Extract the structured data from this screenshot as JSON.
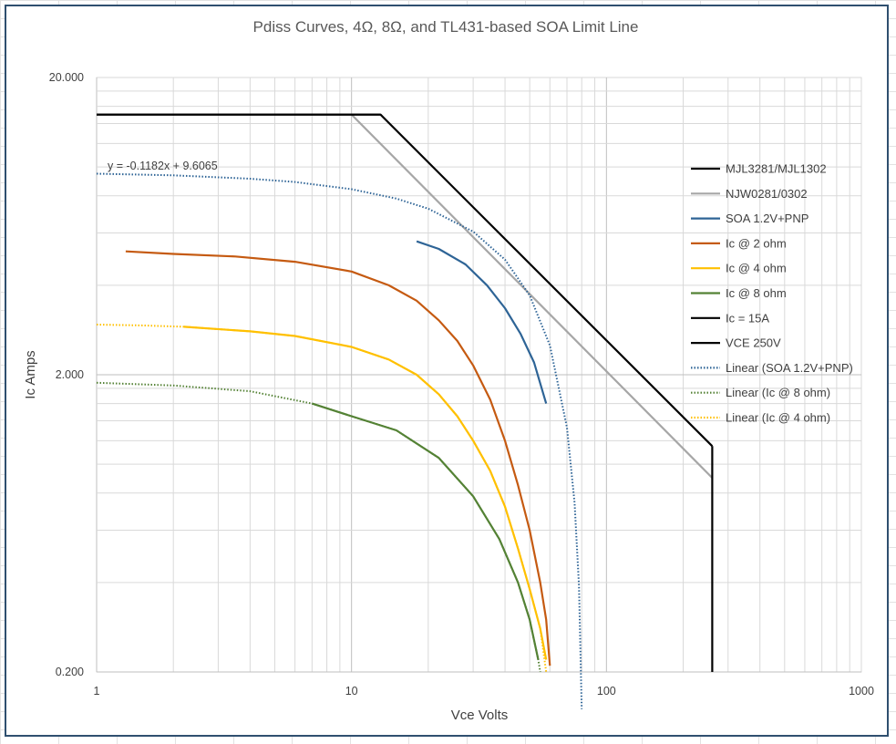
{
  "chart_data": {
    "type": "line",
    "title": "Pdiss Curves, 4Ω, 8Ω, and TL431-based SOA Limit Line",
    "xlabel": "Vce Volts",
    "ylabel": "Ic Amps",
    "xscale": "log",
    "yscale": "log",
    "xlim": [
      1,
      1000
    ],
    "ylim": [
      0.2,
      20
    ],
    "x_ticks": [
      "1",
      "10",
      "100",
      "1000"
    ],
    "y_ticks": [
      "20.000",
      "2.000",
      "0.200"
    ],
    "legend_position": "right",
    "grid": true,
    "trendline_equation": "y = -0.1182x + 9.6065",
    "series": [
      {
        "name": "MJL3281/MJL1302",
        "color": "#000000",
        "style": "solid",
        "points": [
          [
            1,
            15
          ],
          [
            13,
            15
          ],
          [
            260,
            1.15
          ]
        ]
      },
      {
        "name": "NJW0281/0302",
        "color": "#a6a6a6",
        "style": "solid",
        "points": [
          [
            10,
            15
          ],
          [
            260,
            0.9
          ]
        ]
      },
      {
        "name": "SOA 1.2V+PNP",
        "color": "#2e6496",
        "style": "solid",
        "points": [
          [
            18,
            5.62
          ],
          [
            22,
            5.3
          ],
          [
            28,
            4.7
          ],
          [
            34,
            4.0
          ],
          [
            40,
            3.35
          ],
          [
            46,
            2.75
          ],
          [
            52,
            2.2
          ],
          [
            58,
            1.6
          ]
        ]
      },
      {
        "name": "Ic @ 2 ohm",
        "color": "#c55a11",
        "style": "solid",
        "points": [
          [
            1.3,
            5.2
          ],
          [
            2,
            5.1
          ],
          [
            3.5,
            5.0
          ],
          [
            6,
            4.8
          ],
          [
            10,
            4.45
          ],
          [
            14,
            4.0
          ],
          [
            18,
            3.55
          ],
          [
            22,
            3.05
          ],
          [
            26,
            2.6
          ],
          [
            30,
            2.15
          ],
          [
            35,
            1.65
          ],
          [
            40,
            1.2
          ],
          [
            45,
            0.85
          ],
          [
            50,
            0.6
          ],
          [
            55,
            0.4
          ],
          [
            58,
            0.3
          ],
          [
            60,
            0.21
          ]
        ]
      },
      {
        "name": "Ic @ 4 ohm",
        "color": "#ffc000",
        "style": "solid",
        "points": [
          [
            2.2,
            2.9
          ],
          [
            4,
            2.8
          ],
          [
            6,
            2.7
          ],
          [
            10,
            2.48
          ],
          [
            14,
            2.25
          ],
          [
            18,
            2.0
          ],
          [
            22,
            1.72
          ],
          [
            26,
            1.45
          ],
          [
            30,
            1.2
          ],
          [
            35,
            0.95
          ],
          [
            40,
            0.72
          ],
          [
            45,
            0.52
          ],
          [
            50,
            0.38
          ],
          [
            55,
            0.28
          ],
          [
            58,
            0.22
          ]
        ]
      },
      {
        "name": "Ic @ 8 ohm",
        "color": "#548235",
        "style": "solid",
        "points": [
          [
            7,
            1.6
          ],
          [
            10,
            1.45
          ],
          [
            15,
            1.3
          ],
          [
            22,
            1.05
          ],
          [
            30,
            0.78
          ],
          [
            38,
            0.56
          ],
          [
            45,
            0.4
          ],
          [
            50,
            0.3
          ],
          [
            54,
            0.22
          ]
        ]
      },
      {
        "name": "Ic = 15A",
        "color": "#000000",
        "style": "solid",
        "points": [
          [
            1,
            15
          ],
          [
            13,
            15
          ]
        ]
      },
      {
        "name": "VCE 250V",
        "color": "#000000",
        "style": "solid",
        "points": [
          [
            260,
            1.15
          ],
          [
            260,
            0.2
          ]
        ]
      },
      {
        "name": "Linear (SOA 1.2V+PNP)",
        "color": "#2e6496",
        "style": "dotted",
        "points": [
          [
            1,
            9.49
          ],
          [
            2,
            9.37
          ],
          [
            4,
            9.13
          ],
          [
            6,
            8.9
          ],
          [
            10,
            8.42
          ],
          [
            15,
            7.83
          ],
          [
            20,
            7.24
          ],
          [
            30,
            6.06
          ],
          [
            40,
            4.88
          ],
          [
            50,
            3.7
          ],
          [
            60,
            2.51
          ],
          [
            70,
            1.33
          ],
          [
            75,
            0.74
          ],
          [
            78,
            0.39
          ],
          [
            80,
            0.15
          ]
        ]
      },
      {
        "name": "Linear (Ic @ 8 ohm)",
        "color": "#548235",
        "style": "dotted",
        "points": [
          [
            1,
            1.88
          ],
          [
            2,
            1.84
          ],
          [
            4,
            1.76
          ],
          [
            7,
            1.6
          ],
          [
            10,
            1.45
          ],
          [
            15,
            1.3
          ],
          [
            22,
            1.05
          ],
          [
            30,
            0.78
          ],
          [
            38,
            0.56
          ],
          [
            45,
            0.4
          ],
          [
            50,
            0.3
          ],
          [
            54,
            0.22
          ],
          [
            55,
            0.2
          ]
        ]
      },
      {
        "name": "Linear (Ic @ 4 ohm)",
        "color": "#ffc000",
        "style": "dotted",
        "points": [
          [
            1,
            2.95
          ],
          [
            1.5,
            2.93
          ],
          [
            2.2,
            2.9
          ],
          [
            4,
            2.8
          ],
          [
            6,
            2.7
          ],
          [
            10,
            2.48
          ],
          [
            14,
            2.25
          ],
          [
            18,
            2.0
          ],
          [
            22,
            1.72
          ],
          [
            26,
            1.45
          ],
          [
            30,
            1.2
          ],
          [
            35,
            0.95
          ],
          [
            40,
            0.72
          ],
          [
            45,
            0.52
          ],
          [
            50,
            0.38
          ],
          [
            55,
            0.28
          ],
          [
            58,
            0.2
          ]
        ]
      }
    ]
  }
}
